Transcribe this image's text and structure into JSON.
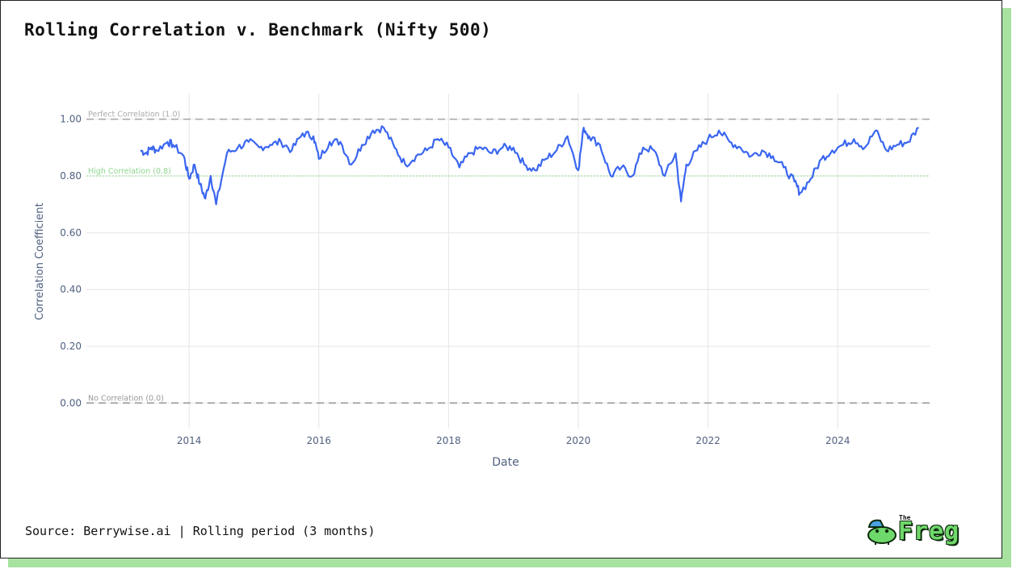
{
  "header": {
    "title": "Rolling Correlation v. Benchmark (Nifty 500)"
  },
  "footer": {
    "source": "Source: Berrywise.ai | Rolling period (3 months)"
  },
  "logo": {
    "small_text": "The",
    "text": "Freg",
    "color": "#6fd86a"
  },
  "chart_data": {
    "type": "line",
    "title": "Rolling Correlation v. Benchmark (Nifty 500)",
    "xlabel": "Date",
    "ylabel": "Correlation Coefficient",
    "x_ticks": [
      "2014",
      "2016",
      "2018",
      "2020",
      "2022",
      "2024"
    ],
    "y_ticks": [
      "0.00",
      "0.20",
      "0.40",
      "0.60",
      "0.80",
      "1.00"
    ],
    "xlim": [
      "2012-06",
      "2025-06"
    ],
    "ylim": [
      -0.09,
      1.09
    ],
    "grid": true,
    "line_color": "#3a66f0",
    "reference_lines": [
      {
        "y": 1.0,
        "label": "Perfect Correlation (1.0)",
        "color": "#aaaaaa",
        "style": "dashed"
      },
      {
        "y": 0.8,
        "label": "High Correlation (0.8)",
        "color": "#8fd68f",
        "style": "dotted"
      },
      {
        "y": 0.0,
        "label": "No Correlation (0.0)",
        "color": "#999999",
        "style": "dashed"
      }
    ],
    "series": [
      {
        "x": [
          "2013-04",
          "2013-05",
          "2013-06",
          "2013-07",
          "2013-09",
          "2013-10",
          "2013-12",
          "2014-01",
          "2014-02",
          "2014-03",
          "2014-04",
          "2014-05",
          "2014-06",
          "2014-08",
          "2014-10",
          "2014-12",
          "2015-02",
          "2015-04",
          "2015-06",
          "2015-08",
          "2015-10",
          "2015-12",
          "2016-01",
          "2016-03",
          "2016-05",
          "2016-07",
          "2016-09",
          "2016-11",
          "2017-01",
          "2017-03",
          "2017-05",
          "2017-07",
          "2017-09",
          "2017-11",
          "2018-01",
          "2018-03",
          "2018-05",
          "2018-07",
          "2018-09",
          "2018-11",
          "2019-01",
          "2019-03",
          "2019-05",
          "2019-07",
          "2019-09",
          "2019-11",
          "2020-01",
          "2020-02",
          "2020-03",
          "2020-05",
          "2020-07",
          "2020-09",
          "2020-11",
          "2021-01",
          "2021-03",
          "2021-05",
          "2021-07",
          "2021-08",
          "2021-09",
          "2021-11",
          "2022-01",
          "2022-03",
          "2022-05",
          "2022-07",
          "2022-09",
          "2022-11",
          "2023-01",
          "2023-03",
          "2023-05",
          "2023-06",
          "2023-08",
          "2023-10",
          "2023-12",
          "2024-02",
          "2024-04",
          "2024-06",
          "2024-08",
          "2024-10",
          "2024-12",
          "2025-02",
          "2025-04"
        ],
        "y": [
          0.89,
          0.88,
          0.9,
          0.89,
          0.92,
          0.91,
          0.87,
          0.79,
          0.84,
          0.77,
          0.72,
          0.8,
          0.7,
          0.88,
          0.9,
          0.92,
          0.9,
          0.91,
          0.92,
          0.89,
          0.95,
          0.94,
          0.86,
          0.92,
          0.92,
          0.84,
          0.91,
          0.96,
          0.97,
          0.9,
          0.84,
          0.87,
          0.89,
          0.93,
          0.9,
          0.83,
          0.88,
          0.9,
          0.88,
          0.9,
          0.9,
          0.84,
          0.82,
          0.86,
          0.89,
          0.94,
          0.82,
          0.97,
          0.94,
          0.91,
          0.8,
          0.83,
          0.8,
          0.9,
          0.89,
          0.8,
          0.88,
          0.71,
          0.84,
          0.89,
          0.93,
          0.96,
          0.92,
          0.9,
          0.87,
          0.89,
          0.87,
          0.83,
          0.78,
          0.74,
          0.79,
          0.86,
          0.89,
          0.91,
          0.93,
          0.9,
          0.96,
          0.89,
          0.91,
          0.92,
          0.97
        ]
      }
    ]
  }
}
